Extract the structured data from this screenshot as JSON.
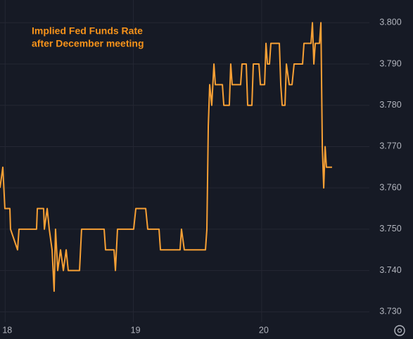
{
  "chart_data": {
    "type": "line",
    "title": "Implied Fed Funds Rate",
    "subtitle": "after December meeting",
    "xlim": [
      17.96,
      20.84
    ],
    "xticks": [
      18,
      19,
      20
    ],
    "ylim": [
      3.7275,
      3.8055
    ],
    "yticks": [
      {
        "value": 3.8,
        "label": "3.800"
      },
      {
        "value": 3.79,
        "label": "3.790"
      },
      {
        "value": 3.78,
        "label": "3.780"
      },
      {
        "value": 3.77,
        "label": "3.770"
      },
      {
        "value": 3.76,
        "label": "3.760"
      },
      {
        "value": 3.75,
        "label": "3.750"
      },
      {
        "value": 3.74,
        "label": "3.740"
      },
      {
        "value": 3.73,
        "label": "3.730"
      }
    ],
    "grid": true,
    "series": [
      {
        "name": "Implied Fed Funds Rate",
        "color": "#f7a035",
        "x": [
          17.96,
          17.982,
          17.998,
          18.037,
          18.042,
          18.097,
          18.108,
          18.245,
          18.251,
          18.3,
          18.306,
          18.328,
          18.344,
          18.366,
          18.382,
          18.393,
          18.41,
          18.432,
          18.454,
          18.476,
          18.492,
          18.58,
          18.596,
          18.772,
          18.783,
          18.849,
          18.86,
          18.876,
          19.002,
          19.019,
          19.096,
          19.112,
          19.2,
          19.211,
          19.364,
          19.375,
          19.397,
          19.562,
          19.573,
          19.584,
          19.595,
          19.611,
          19.628,
          19.639,
          19.694,
          19.705,
          19.748,
          19.759,
          19.77,
          19.836,
          19.847,
          19.88,
          19.891,
          19.924,
          19.935,
          19.979,
          19.99,
          20.023,
          20.034,
          20.045,
          20.061,
          20.072,
          20.138,
          20.149,
          20.16,
          20.182,
          20.193,
          20.215,
          20.237,
          20.253,
          20.319,
          20.33,
          20.385,
          20.396,
          20.407,
          20.418,
          20.451,
          20.462,
          20.473,
          20.484,
          20.495,
          20.505,
          20.549
        ],
        "values": [
          3.76,
          3.765,
          3.755,
          3.755,
          3.75,
          3.745,
          3.75,
          3.75,
          3.755,
          3.755,
          3.75,
          3.755,
          3.75,
          3.745,
          3.735,
          3.75,
          3.74,
          3.745,
          3.74,
          3.745,
          3.74,
          3.74,
          3.75,
          3.75,
          3.745,
          3.745,
          3.74,
          3.75,
          3.75,
          3.755,
          3.755,
          3.75,
          3.75,
          3.745,
          3.745,
          3.75,
          3.745,
          3.745,
          3.75,
          3.775,
          3.785,
          3.78,
          3.79,
          3.785,
          3.785,
          3.78,
          3.78,
          3.79,
          3.785,
          3.785,
          3.79,
          3.79,
          3.78,
          3.78,
          3.79,
          3.79,
          3.785,
          3.785,
          3.795,
          3.79,
          3.79,
          3.795,
          3.795,
          3.785,
          3.78,
          3.78,
          3.79,
          3.785,
          3.785,
          3.79,
          3.79,
          3.795,
          3.795,
          3.8,
          3.79,
          3.795,
          3.795,
          3.8,
          3.77,
          3.76,
          3.77,
          3.765,
          3.765
        ]
      }
    ]
  }
}
